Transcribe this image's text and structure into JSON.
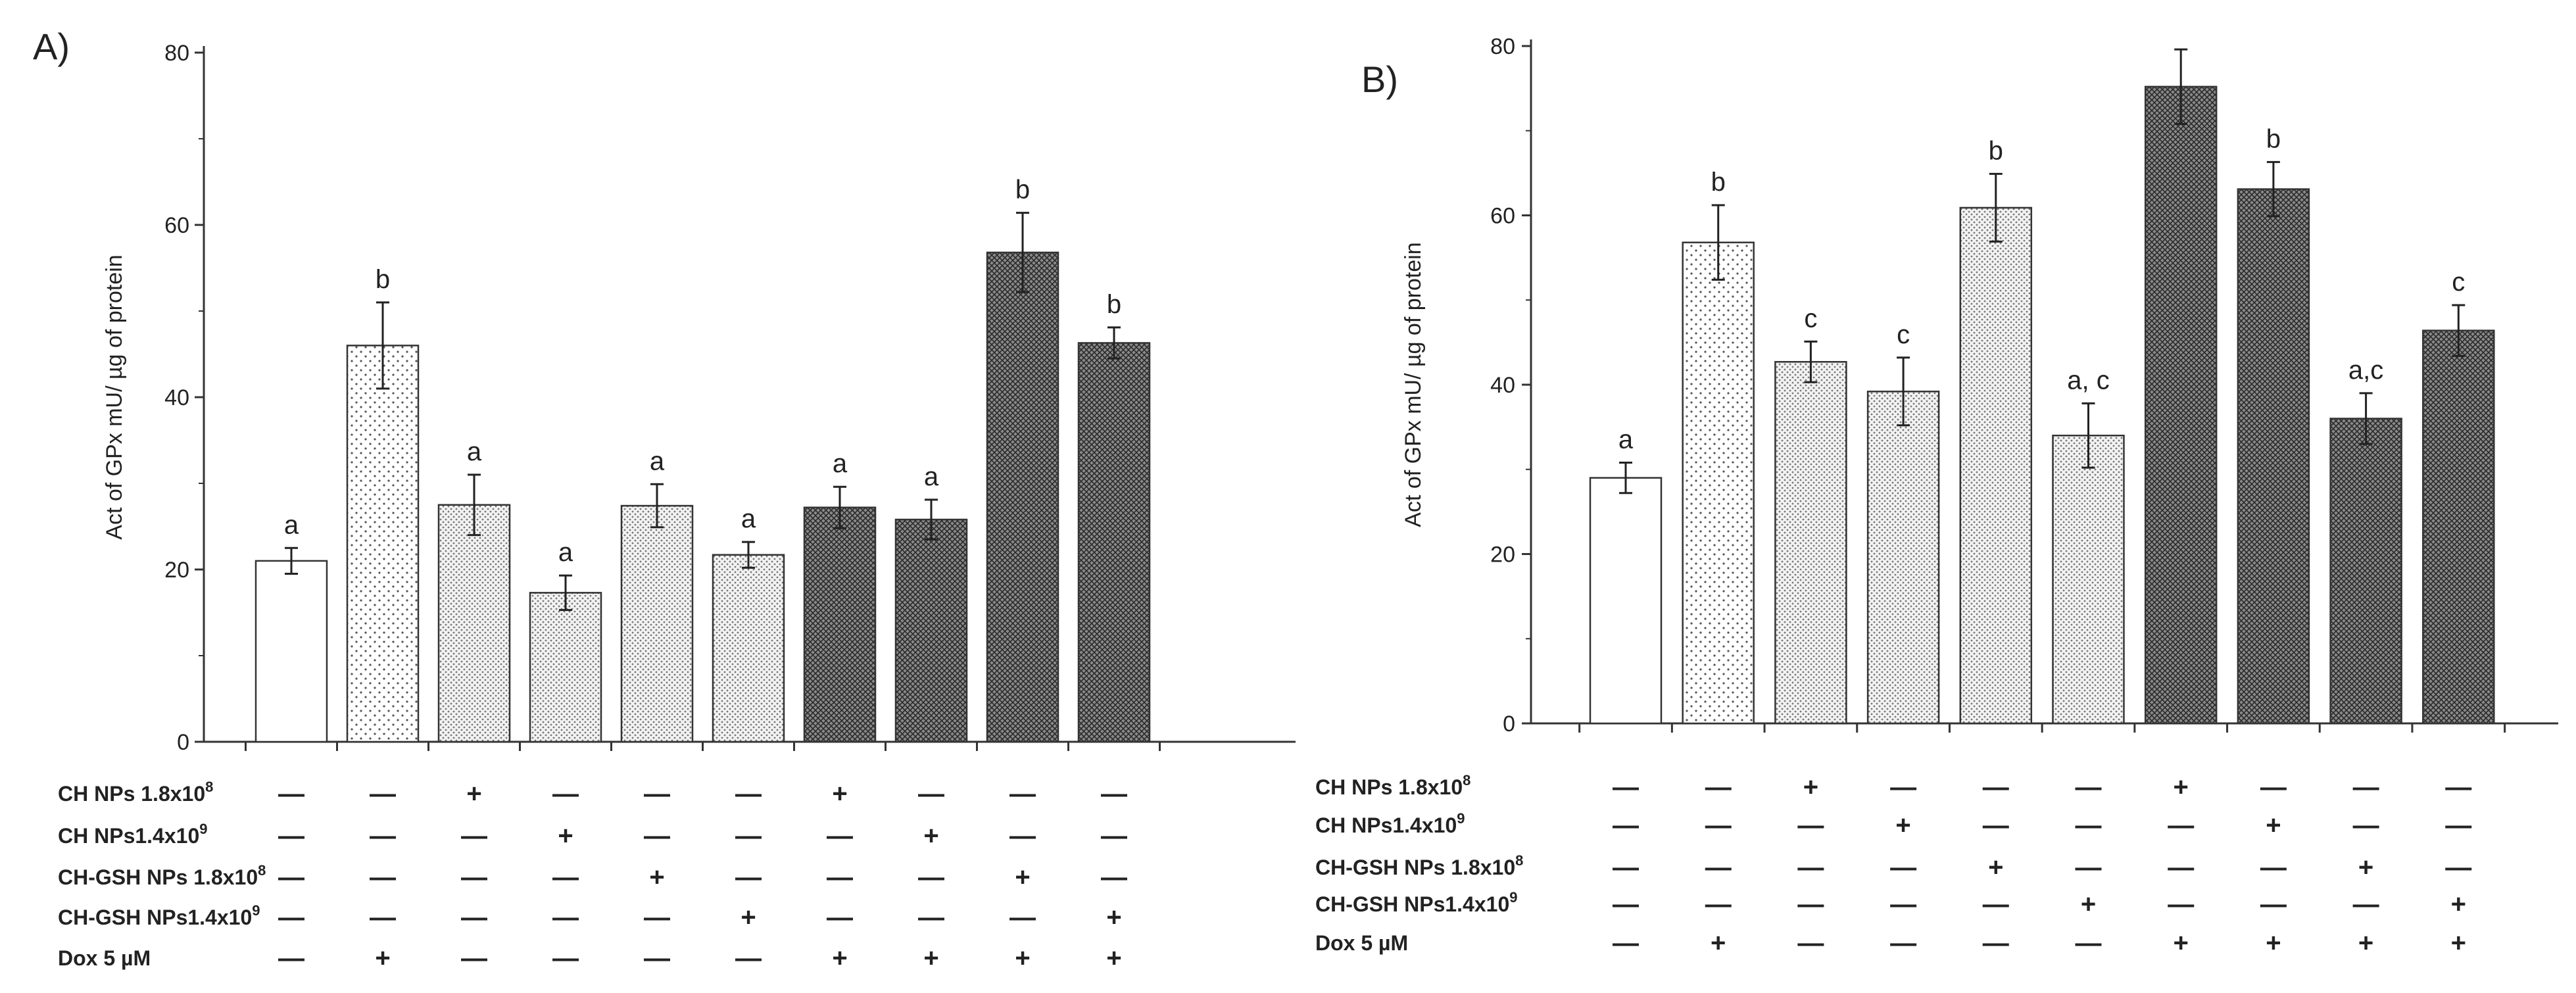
{
  "chart_data": [
    {
      "type": "bar",
      "panel_label": "A)",
      "ylabel": "Act of GPx mU/ µg of protein",
      "ylim": [
        0,
        80
      ],
      "yticks": [
        "0",
        "20",
        "40",
        "60",
        "80"
      ],
      "bars": [
        {
          "value": 21,
          "err": 1.5,
          "sig": "a",
          "fill": "white"
        },
        {
          "value": 46,
          "err": 5,
          "sig": "b",
          "fill": "sparse-dots"
        },
        {
          "value": 27.5,
          "err": 3.5,
          "sig": "a",
          "fill": "dots"
        },
        {
          "value": 17.3,
          "err": 2,
          "sig": "a",
          "fill": "dots"
        },
        {
          "value": 27.4,
          "err": 2.5,
          "sig": "a",
          "fill": "dots"
        },
        {
          "value": 21.7,
          "err": 1.5,
          "sig": "a",
          "fill": "dots"
        },
        {
          "value": 27.2,
          "err": 2.4,
          "sig": "a",
          "fill": "crosshatch"
        },
        {
          "value": 25.8,
          "err": 2.3,
          "sig": "a",
          "fill": "crosshatch"
        },
        {
          "value": 56.8,
          "err": 4.6,
          "sig": "b",
          "fill": "crosshatch"
        },
        {
          "value": 46.3,
          "err": 1.8,
          "sig": "b",
          "fill": "crosshatch"
        }
      ],
      "treatment_rows": [
        {
          "label": "CH NPs 1.8x10",
          "sup": "8",
          "marks": [
            "—",
            "—",
            "+",
            "—",
            "—",
            "—",
            "+",
            "—",
            "—",
            "—"
          ]
        },
        {
          "label": "CH NPs1.4x10",
          "sup": "9",
          "marks": [
            "—",
            "—",
            "—",
            "+",
            "—",
            "—",
            "—",
            "+",
            "—",
            "—"
          ]
        },
        {
          "label": "CH-GSH NPs 1.8x10",
          "sup": "8",
          "marks": [
            "—",
            "—",
            "—",
            "—",
            "+",
            "—",
            "—",
            "—",
            "+",
            "—"
          ]
        },
        {
          "label": "CH-GSH NPs1.4x10",
          "sup": "9",
          "marks": [
            "—",
            "—",
            "—",
            "—",
            "—",
            "+",
            "—",
            "—",
            "—",
            "+"
          ]
        },
        {
          "label": "Dox 5 µM",
          "sup": "",
          "marks": [
            "—",
            "+",
            "—",
            "—",
            "—",
            "—",
            "+",
            "+",
            "+",
            "+"
          ]
        }
      ]
    },
    {
      "type": "bar",
      "panel_label": "B)",
      "ylabel": "Act of GPx mU/ µg of protein",
      "ylim": [
        0,
        80
      ],
      "yticks": [
        "0",
        "20",
        "40",
        "60",
        "80"
      ],
      "bars": [
        {
          "value": 29,
          "err": 1.8,
          "sig": "a",
          "fill": "white"
        },
        {
          "value": 56.8,
          "err": 4.4,
          "sig": "b",
          "fill": "sparse-dots"
        },
        {
          "value": 42.7,
          "err": 2.4,
          "sig": "c",
          "fill": "dots"
        },
        {
          "value": 39.2,
          "err": 4,
          "sig": "c",
          "fill": "dots"
        },
        {
          "value": 60.9,
          "err": 4,
          "sig": "b",
          "fill": "dots"
        },
        {
          "value": 34,
          "err": 3.8,
          "sig": "a, c",
          "fill": "dots"
        },
        {
          "value": 75.2,
          "err": 4.4,
          "sig": "",
          "fill": "crosshatch"
        },
        {
          "value": 63.1,
          "err": 3.2,
          "sig": "b",
          "fill": "crosshatch"
        },
        {
          "value": 36,
          "err": 3,
          "sig": "a,c",
          "fill": "crosshatch"
        },
        {
          "value": 46.4,
          "err": 3,
          "sig": "c",
          "fill": "crosshatch"
        }
      ],
      "treatment_rows": [
        {
          "label": "CH NPs 1.8x10",
          "sup": "8",
          "marks": [
            "—",
            "—",
            "+",
            "—",
            "—",
            "—",
            "+",
            "—",
            "—",
            "—"
          ]
        },
        {
          "label": "CH NPs1.4x10",
          "sup": "9",
          "marks": [
            "—",
            "—",
            "—",
            "+",
            "—",
            "—",
            "—",
            "+",
            "—",
            "—"
          ]
        },
        {
          "label": "CH-GSH NPs 1.8x10",
          "sup": "8",
          "marks": [
            "—",
            "—",
            "—",
            "—",
            "+",
            "—",
            "—",
            "—",
            "+",
            "—"
          ]
        },
        {
          "label": "CH-GSH NPs1.4x10",
          "sup": "9",
          "marks": [
            "—",
            "—",
            "—",
            "—",
            "—",
            "+",
            "—",
            "—",
            "—",
            "+"
          ]
        },
        {
          "label": "Dox 5 µM",
          "sup": "",
          "marks": [
            "—",
            "+",
            "—",
            "—",
            "—",
            "—",
            "+",
            "+",
            "+",
            "+"
          ]
        }
      ]
    }
  ]
}
